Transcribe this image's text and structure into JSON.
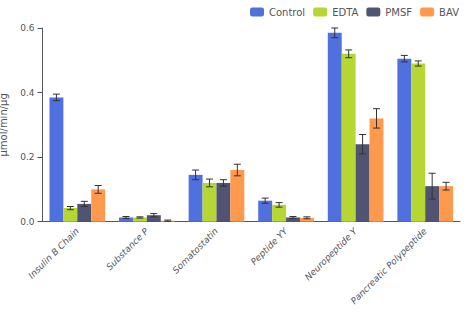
{
  "chart_data": {
    "type": "bar",
    "categories": [
      "Insulin B Chain",
      "Substance P",
      "Somatostatin",
      "Peptide YY",
      "Neuropeptide Y",
      "Pancreatic Polypeptide"
    ],
    "series": [
      {
        "name": "Control",
        "values": [
          0.385,
          0.013,
          0.145,
          0.065,
          0.585,
          0.505
        ],
        "errors": [
          0.01,
          0.003,
          0.015,
          0.008,
          0.015,
          0.01
        ]
      },
      {
        "name": "EDTA",
        "values": [
          0.042,
          0.013,
          0.12,
          0.052,
          0.52,
          0.49
        ],
        "errors": [
          0.005,
          0.002,
          0.012,
          0.007,
          0.012,
          0.008
        ]
      },
      {
        "name": "PMSF",
        "values": [
          0.055,
          0.02,
          0.12,
          0.013,
          0.24,
          0.11
        ],
        "errors": [
          0.008,
          0.005,
          0.01,
          0.003,
          0.03,
          0.04
        ]
      },
      {
        "name": "BAV",
        "values": [
          0.1,
          0.003,
          0.16,
          0.012,
          0.32,
          0.11
        ],
        "errors": [
          0.012,
          0.002,
          0.018,
          0.003,
          0.03,
          0.012
        ]
      }
    ],
    "ylabel": "μmol/min/μg",
    "ylim": [
      0,
      0.6
    ],
    "yticks": [
      {
        "value": 0,
        "label": "0.0"
      },
      0.2,
      0.4,
      0.6
    ],
    "grid": false,
    "legend": "upper right"
  }
}
